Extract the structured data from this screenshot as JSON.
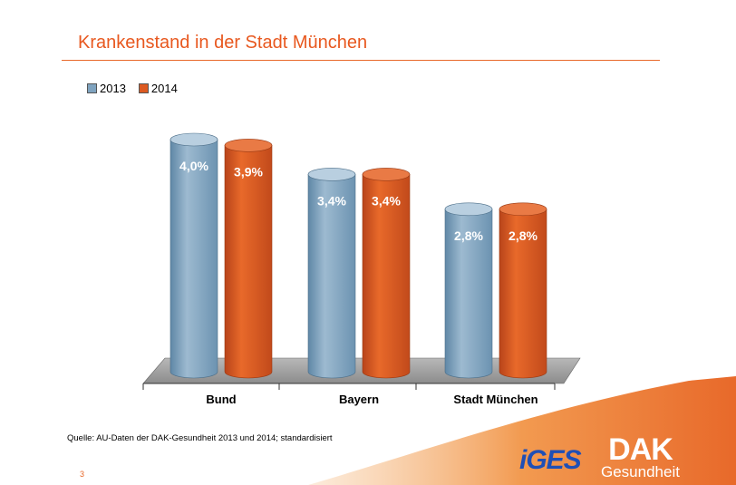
{
  "title": "Krankenstand in der Stadt München",
  "source": "Quelle: AU-Daten der DAK-Gesundheit 2013 und 2014; standardisiert",
  "page_number": "3",
  "logos": {
    "iges": "iGES",
    "dak_name": "DAK",
    "dak_sub": "Gesundheit"
  },
  "colors": {
    "accent": "#e8581f",
    "series_2013": "#7fa3bf",
    "series_2014": "#dc5a22"
  },
  "chart_data": {
    "type": "bar",
    "title": "",
    "xlabel": "",
    "ylabel": "",
    "categories": [
      "Bund",
      "Bayern",
      "Stadt München"
    ],
    "series": [
      {
        "name": "2013",
        "values": [
          4.0,
          3.4,
          2.8
        ],
        "labels": [
          "4,0%",
          "3,4%",
          "2,8%"
        ]
      },
      {
        "name": "2014",
        "values": [
          3.9,
          3.4,
          2.8
        ],
        "labels": [
          "3,9%",
          "3,4%",
          "2,8%"
        ]
      }
    ],
    "ylim": [
      0,
      4.5
    ],
    "legend_position": "top-left",
    "grid": false
  }
}
